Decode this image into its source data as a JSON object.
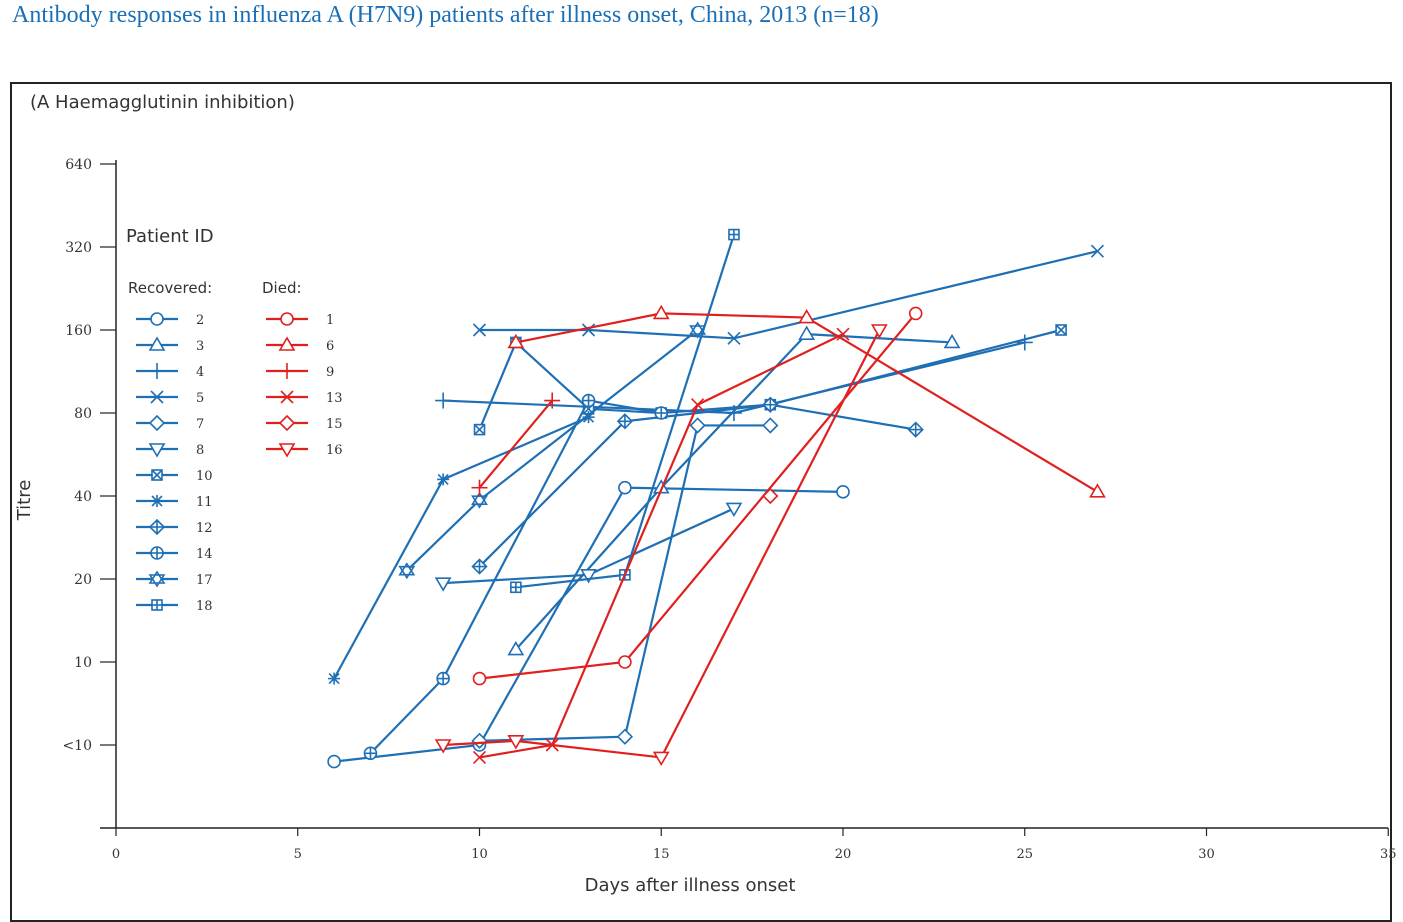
{
  "page": {
    "title": "Antibody responses in influenza A (H7N9) patients after illness onset, China, 2013 (n=18)"
  },
  "colors": {
    "recovered": "#1f6fb5",
    "died": "#e0201f",
    "axis": "#222222",
    "text": "#333333"
  },
  "chart_data": {
    "type": "line",
    "panel_label": "(A Haemagglutinin inhibition)",
    "xlabel": "Days after illness onset",
    "ylabel": "Titre",
    "xlim": [
      0,
      35
    ],
    "x_ticks": [
      "0",
      "5",
      "10",
      "15",
      "20",
      "25",
      "30",
      "35"
    ],
    "y_scale": "log2 (level 0 = <10, level 1 = 10, level 7 = 640)",
    "ylim_levels": [
      -1,
      7
    ],
    "y_ticks": [
      {
        "label": "640",
        "level": 7
      },
      {
        "label": "320",
        "level": 6
      },
      {
        "label": "160",
        "level": 5
      },
      {
        "label": "80",
        "level": 4
      },
      {
        "label": "40",
        "level": 3
      },
      {
        "label": "20",
        "level": 2
      },
      {
        "label": "10",
        "level": 1
      },
      {
        "label": "<10",
        "level": 0
      }
    ],
    "legend": {
      "title": "Patient ID",
      "recovered_label": "Recovered:",
      "died_label": "Died:",
      "placement": "top-left"
    },
    "series": [
      {
        "id": "2",
        "group": "recovered",
        "marker": "circle",
        "points": [
          [
            6,
            -0.2
          ],
          [
            10,
            0
          ],
          [
            14,
            3.1
          ],
          [
            20,
            3.05
          ]
        ]
      },
      {
        "id": "3",
        "group": "recovered",
        "marker": "triangle",
        "points": [
          [
            11,
            1.15
          ],
          [
            15,
            3.1
          ],
          [
            19,
            4.95
          ],
          [
            23,
            4.85
          ]
        ]
      },
      {
        "id": "4",
        "group": "recovered",
        "marker": "plus",
        "points": [
          [
            9,
            4.15
          ],
          [
            17,
            4
          ],
          [
            25,
            4.85
          ]
        ]
      },
      {
        "id": "5",
        "group": "recovered",
        "marker": "x",
        "points": [
          [
            10,
            5
          ],
          [
            13,
            5
          ],
          [
            17,
            4.9
          ],
          [
            27,
            5.95
          ]
        ]
      },
      {
        "id": "7",
        "group": "recovered",
        "marker": "diamond",
        "points": [
          [
            10,
            0.05
          ],
          [
            14,
            0.1
          ],
          [
            16,
            3.85
          ],
          [
            18,
            3.85
          ]
        ]
      },
      {
        "id": "8",
        "group": "recovered",
        "marker": "triangle-down",
        "points": [
          [
            9,
            1.95
          ],
          [
            13,
            2.05
          ],
          [
            17,
            2.85
          ]
        ]
      },
      {
        "id": "10",
        "group": "recovered",
        "marker": "square-x",
        "points": [
          [
            10,
            3.8
          ],
          [
            11,
            4.85
          ],
          [
            13,
            4.05
          ],
          [
            15,
            4
          ],
          [
            18,
            4.1
          ],
          [
            26,
            5
          ]
        ]
      },
      {
        "id": "11",
        "group": "recovered",
        "marker": "asterisk",
        "points": [
          [
            6,
            0.8
          ],
          [
            9,
            3.2
          ],
          [
            13,
            3.95
          ]
        ]
      },
      {
        "id": "12",
        "group": "recovered",
        "marker": "diamond-plus",
        "points": [
          [
            10,
            2.15
          ],
          [
            14,
            3.9
          ],
          [
            18,
            4.1
          ],
          [
            22,
            3.8
          ]
        ]
      },
      {
        "id": "14",
        "group": "recovered",
        "marker": "circle-plus",
        "points": [
          [
            7,
            -0.1
          ],
          [
            9,
            0.8
          ],
          [
            13,
            4.15
          ],
          [
            15,
            4
          ]
        ]
      },
      {
        "id": "17",
        "group": "recovered",
        "marker": "star-david",
        "points": [
          [
            8,
            2.1
          ],
          [
            10,
            2.95
          ],
          [
            16,
            5
          ]
        ]
      },
      {
        "id": "18",
        "group": "recovered",
        "marker": "square-plus",
        "points": [
          [
            11,
            1.9
          ],
          [
            14,
            2.05
          ],
          [
            17,
            6.15
          ]
        ]
      },
      {
        "id": "1",
        "group": "died",
        "marker": "circle",
        "points": [
          [
            10,
            0.8
          ],
          [
            14,
            1
          ],
          [
            22,
            5.2
          ]
        ]
      },
      {
        "id": "6",
        "group": "died",
        "marker": "triangle",
        "points": [
          [
            11,
            4.85
          ],
          [
            15,
            5.2
          ],
          [
            19,
            5.15
          ],
          [
            27,
            3.05
          ]
        ]
      },
      {
        "id": "9",
        "group": "died",
        "marker": "plus",
        "points": [
          [
            10,
            3.1
          ],
          [
            12,
            4.15
          ]
        ]
      },
      {
        "id": "13",
        "group": "died",
        "marker": "x",
        "points": [
          [
            10,
            -0.15
          ],
          [
            12,
            0
          ],
          [
            16,
            4.1
          ],
          [
            20,
            4.95
          ]
        ]
      },
      {
        "id": "15",
        "group": "died",
        "marker": "diamond",
        "points": [
          [
            18,
            3
          ]
        ]
      },
      {
        "id": "16",
        "group": "died",
        "marker": "triangle-down",
        "points": [
          [
            9,
            0
          ],
          [
            11,
            0.05
          ],
          [
            15,
            -0.15
          ],
          [
            21,
            5
          ]
        ]
      }
    ]
  }
}
